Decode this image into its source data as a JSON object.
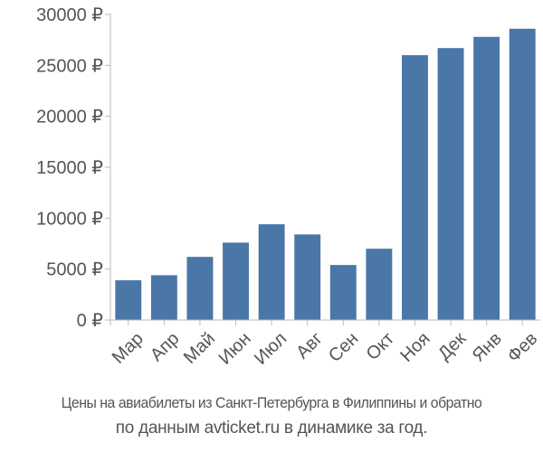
{
  "chart_data": {
    "type": "bar",
    "categories": [
      "Мар",
      "Апр",
      "Май",
      "Июн",
      "Июл",
      "Авг",
      "Сен",
      "Окт",
      "Ноя",
      "Дек",
      "Янв",
      "Фев"
    ],
    "values": [
      3900,
      4400,
      6200,
      7600,
      9400,
      8400,
      5400,
      7000,
      26000,
      26700,
      27800,
      28600
    ],
    "ylim": [
      0,
      30000
    ],
    "yticks": [
      0,
      5000,
      10000,
      15000,
      20000,
      25000,
      30000
    ],
    "ytick_labels": [
      "0 ₽",
      "5000 ₽",
      "10000 ₽",
      "15000 ₽",
      "20000 ₽",
      "25000 ₽",
      "30000 ₽"
    ],
    "grid": false,
    "bar_color": "#4a76a8",
    "axis_color": "#bbbbbb",
    "text_color": "#555555"
  },
  "caption": {
    "line1": "Цены на авиабилеты из Санкт-Петербурга в Филиппины и обратно",
    "line2": "по данным avticket.ru в динамике за год."
  }
}
